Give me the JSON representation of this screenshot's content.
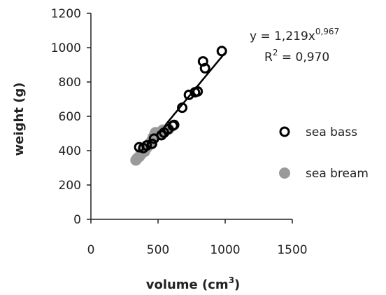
{
  "colors": {
    "axis": "#222222",
    "sea_bass_stroke": "#000000",
    "sea_bream_fill": "#9a9a9a",
    "fit_line": "#000000"
  },
  "chart_data": {
    "type": "scatter",
    "xlabel": "volume (cm",
    "xlabel_sup": "3",
    "xlabel_close": ")",
    "ylabel": "weight (g)",
    "xlim": [
      0,
      1500
    ],
    "ylim": [
      0,
      1200
    ],
    "x_ticks": [
      "0",
      "500",
      "1000",
      "1500"
    ],
    "y_ticks": [
      "0",
      "200",
      "400",
      "600",
      "800",
      "1000",
      "1200"
    ],
    "grid": false,
    "legend_position": "right",
    "series": [
      {
        "name": "sea bass",
        "marker": "open-circle",
        "points": [
          [
            360,
            420
          ],
          [
            390,
            415
          ],
          [
            415,
            430
          ],
          [
            455,
            440
          ],
          [
            470,
            470
          ],
          [
            525,
            490
          ],
          [
            545,
            505
          ],
          [
            575,
            525
          ],
          [
            610,
            545
          ],
          [
            620,
            550
          ],
          [
            680,
            650
          ],
          [
            730,
            725
          ],
          [
            775,
            740
          ],
          [
            795,
            745
          ],
          [
            835,
            920
          ],
          [
            850,
            880
          ],
          [
            975,
            980
          ]
        ]
      },
      {
        "name": "sea bream",
        "marker": "filled-circle",
        "points": [
          [
            335,
            345
          ],
          [
            345,
            355
          ],
          [
            360,
            365
          ],
          [
            370,
            375
          ],
          [
            380,
            390
          ],
          [
            390,
            400
          ],
          [
            400,
            395
          ],
          [
            410,
            415
          ],
          [
            420,
            420
          ],
          [
            430,
            430
          ],
          [
            440,
            445
          ],
          [
            455,
            460
          ],
          [
            465,
            480
          ],
          [
            475,
            495
          ],
          [
            480,
            505
          ],
          [
            495,
            500
          ],
          [
            510,
            495
          ],
          [
            520,
            510
          ],
          [
            535,
            520
          ],
          [
            555,
            515
          ],
          [
            580,
            525
          ]
        ]
      }
    ],
    "fit": {
      "x_range": [
        340,
        1000
      ],
      "coef": 1.219,
      "exponent": 0.967
    },
    "equation_main": "y = 1,219x",
    "equation_exp": "0,967",
    "r2_label": "R",
    "r2_sup": "2",
    "r2_value": " = 0,970"
  }
}
